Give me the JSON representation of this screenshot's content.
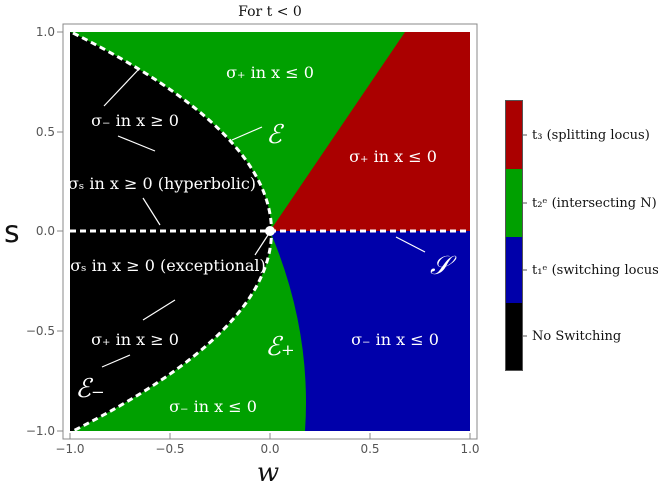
{
  "title": "For t < 0",
  "axes": {
    "xlabel": "w",
    "ylabel": "s",
    "xticks": [
      "−1.0",
      "−0.5",
      "0.0",
      "0.5",
      "1.0"
    ],
    "yticks": [
      "1.0",
      "0.5",
      "0.0",
      "−0.5",
      "−1.0"
    ]
  },
  "regions": {
    "top_green": "σ₊ in x ≤ 0",
    "red": "σ₊ in x ≤ 0",
    "blue": "σ₋ in x ≤ 0",
    "bottom_green": "σ₋ in x ≤ 0",
    "black_top": "σ₋ in x ≥ 0",
    "black_hyp": "σₛ in x ≥ 0 (hyperbolic)",
    "black_exc": "σₛ in x ≥ 0 (exceptional)",
    "black_bottom": "σ₊ in x ≥ 0"
  },
  "curves": {
    "E": "ℰ",
    "E_plus": "ℰ₊",
    "E_minus": "ℰ₋",
    "S": "𝒮"
  },
  "legend": [
    {
      "label": "t₃ (splitting locus)",
      "color": "#aa0000"
    },
    {
      "label": "t₂ᵉ (intersecting N)",
      "color": "#00a000"
    },
    {
      "label": "t₁ᵉ (switching locus)",
      "color": "#0000aa"
    },
    {
      "label": "No Switching",
      "color": "#000000"
    }
  ]
}
